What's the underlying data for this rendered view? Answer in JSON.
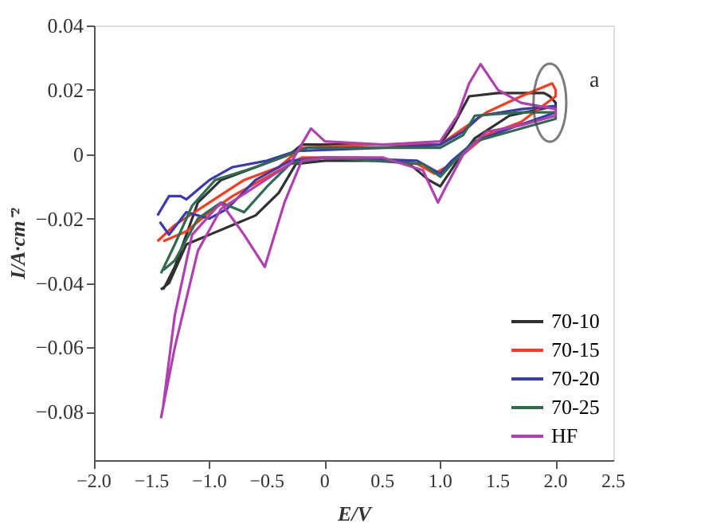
{
  "chart_data": {
    "type": "line",
    "xlabel": "E/V",
    "ylabel": "I/A·cm⁻²",
    "xlim": [
      -2.0,
      2.5
    ],
    "ylim": [
      -0.095,
      0.04
    ],
    "xticks": [
      {
        "value": -2.0,
        "label": "−2.0"
      },
      {
        "value": -1.5,
        "label": "−1.5"
      },
      {
        "value": -1.0,
        "label": "−1.0"
      },
      {
        "value": -0.5,
        "label": "−0.5"
      },
      0,
      0.5,
      {
        "value": 1.0,
        "label": "1.0"
      },
      1.5,
      {
        "value": 2.0,
        "label": "2.0"
      },
      2.5
    ],
    "yticks": [
      {
        "value": -0.08,
        "label": "−0.08"
      },
      {
        "value": -0.06,
        "label": "−0.06"
      },
      {
        "value": -0.04,
        "label": "−0.04"
      },
      {
        "value": -0.02,
        "label": "−0.02"
      },
      0,
      0.02,
      0.04
    ],
    "grid": false,
    "legend": "bottom right",
    "marker": "none",
    "line_style": "solid",
    "annotations": [
      {
        "text": "a",
        "x": 1.95,
        "y": 0.016
      }
    ],
    "series": [
      {
        "name": "70-10",
        "color": "#303030",
        "x": [
          -1.4,
          -1.3,
          -1.1,
          -0.9,
          -0.6,
          -0.3,
          -0.2,
          0.5,
          1.0,
          1.1,
          1.25,
          1.5,
          1.9,
          1.95,
          2.0,
          2.0,
          1.6,
          1.3,
          1.15,
          1.0,
          0.9,
          0.7,
          0,
          -0.25,
          -0.4,
          -0.6,
          -0.8,
          -1.0,
          -1.2,
          -1.35,
          -1.42
        ],
        "values": [
          -0.042,
          -0.035,
          -0.015,
          -0.008,
          -0.004,
          0.0,
          0.003,
          0.003,
          0.003,
          0.008,
          0.018,
          0.019,
          0.019,
          0.018,
          0.016,
          0.015,
          0.012,
          0.005,
          -0.002,
          -0.01,
          -0.008,
          -0.002,
          -0.002,
          -0.003,
          -0.012,
          -0.019,
          -0.022,
          -0.025,
          -0.028,
          -0.04,
          -0.042
        ]
      },
      {
        "name": "70-15",
        "color": "#ff3b1f",
        "x": [
          -1.45,
          -1.3,
          -1.0,
          -0.7,
          -0.4,
          -0.2,
          0.4,
          1.0,
          1.2,
          1.4,
          1.7,
          1.97,
          2.0,
          2.0,
          1.7,
          1.4,
          1.2,
          1.05,
          0.95,
          0.8,
          0.3,
          -0.2,
          -0.5,
          -0.8,
          -1.0,
          -1.2,
          -1.4
        ],
        "values": [
          -0.027,
          -0.022,
          -0.015,
          -0.008,
          -0.004,
          0.002,
          0.003,
          0.003,
          0.008,
          0.013,
          0.018,
          0.022,
          0.02,
          0.018,
          0.01,
          0.006,
          0.0,
          -0.004,
          -0.006,
          -0.003,
          -0.001,
          -0.001,
          -0.007,
          -0.013,
          -0.018,
          -0.024,
          -0.027
        ]
      },
      {
        "name": "70-20",
        "color": "#3a3ab0",
        "x": [
          -1.45,
          -1.4,
          -1.35,
          -1.25,
          -1.2,
          -1.0,
          -0.8,
          -0.5,
          -0.25,
          0.5,
          1.0,
          1.2,
          1.35,
          1.7,
          2.0,
          2.0,
          1.6,
          1.3,
          1.1,
          1.0,
          0.8,
          0,
          -0.3,
          -0.6,
          -0.85,
          -1.0,
          -1.2,
          -1.35,
          -1.43
        ],
        "values": [
          -0.019,
          -0.016,
          -0.013,
          -0.013,
          -0.014,
          -0.008,
          -0.004,
          -0.002,
          0.001,
          0.002,
          0.003,
          0.007,
          0.012,
          0.014,
          0.015,
          0.013,
          0.008,
          0.004,
          -0.002,
          -0.006,
          -0.002,
          -0.001,
          -0.002,
          -0.008,
          -0.017,
          -0.02,
          -0.018,
          -0.025,
          -0.021
        ]
      },
      {
        "name": "70-25",
        "color": "#2f6b4f",
        "x": [
          -1.42,
          -1.3,
          -1.15,
          -0.95,
          -0.6,
          -0.3,
          -0.15,
          0.5,
          1.0,
          1.2,
          1.3,
          1.7,
          2.0,
          2.0,
          1.6,
          1.3,
          1.1,
          1.0,
          0.85,
          0,
          -0.3,
          -0.5,
          -0.7,
          -0.9,
          -1.1,
          -1.3,
          -1.4
        ],
        "values": [
          -0.037,
          -0.028,
          -0.016,
          -0.008,
          -0.004,
          0.0,
          0.002,
          0.002,
          0.002,
          0.006,
          0.012,
          0.013,
          0.013,
          0.011,
          0.007,
          0.004,
          -0.003,
          -0.007,
          -0.003,
          -0.001,
          -0.003,
          -0.01,
          -0.018,
          -0.015,
          -0.02,
          -0.033,
          -0.036
        ]
      },
      {
        "name": "HF",
        "color": "#b040b0",
        "x": [
          -1.42,
          -1.3,
          -1.1,
          -0.9,
          -0.6,
          -0.3,
          -0.12,
          0,
          0.5,
          1.0,
          1.15,
          1.25,
          1.35,
          1.5,
          1.7,
          2.0,
          2.0,
          1.7,
          1.4,
          1.2,
          1.05,
          0.98,
          0.85,
          0.5,
          0,
          -0.2,
          -0.35,
          -0.52,
          -0.7,
          -0.9,
          -1.15,
          -1.3,
          -1.4
        ],
        "values": [
          -0.082,
          -0.06,
          -0.03,
          -0.017,
          -0.01,
          -0.003,
          0.008,
          0.004,
          0.003,
          0.004,
          0.012,
          0.022,
          0.028,
          0.02,
          0.016,
          0.014,
          0.012,
          0.009,
          0.007,
          0.0,
          -0.01,
          -0.015,
          -0.005,
          -0.001,
          -0.001,
          -0.002,
          -0.015,
          -0.035,
          -0.025,
          -0.015,
          -0.025,
          -0.05,
          -0.078
        ]
      }
    ]
  }
}
